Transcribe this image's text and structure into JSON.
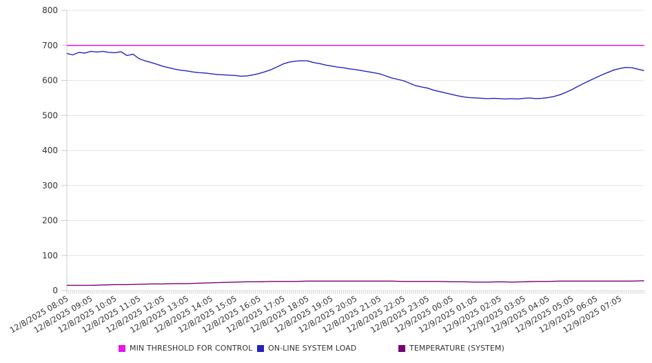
{
  "chart_data": {
    "type": "line",
    "title": "",
    "xlabel": "",
    "ylabel": "",
    "y_axis": {
      "min": 0,
      "max": 800,
      "tick_step": 100,
      "ticks": [
        "0",
        "100",
        "200",
        "300",
        "400",
        "500",
        "600",
        "700",
        "800"
      ]
    },
    "x_axis": {
      "labels": [
        "12/8/2025 08:05",
        "12/8/2025 09:05",
        "12/8/2025 10:05",
        "12/8/2025 11:05",
        "12/8/2025 12:05",
        "12/8/2025 13:05",
        "12/8/2025 14:05",
        "12/8/2025 15:05",
        "12/8/2025 16:05",
        "12/8/2025 17:05",
        "12/8/2025 18:05",
        "12/8/2025 19:05",
        "12/8/2025 20:05",
        "12/8/2025 21:05",
        "12/8/2025 22:05",
        "12/8/2025 23:05",
        "12/9/2025 00:05",
        "12/9/2025 01:05",
        "12/9/2025 02:05",
        "12/9/2025 03:05",
        "12/9/2025 04:05",
        "12/9/2025 05:05",
        "12/9/2025 06:05",
        "12/9/2025 07:05"
      ],
      "minutes_per_label": 60,
      "total_minutes": 1440,
      "minor_tick_minutes": 5
    },
    "grid": true,
    "legend_position": "bottom",
    "series": [
      {
        "name": "MIN THRESHOLD FOR CONTROL",
        "color": "#e516e5",
        "kind": "constant",
        "value": 700
      },
      {
        "name": "ON-LINE SYSTEM LOAD",
        "color": "#2323bd",
        "kind": "sampled",
        "sample_minutes": 15,
        "values": [
          677,
          673,
          680,
          678,
          683,
          681,
          683,
          680,
          679,
          682,
          671,
          675,
          662,
          656,
          651,
          646,
          640,
          636,
          632,
          629,
          627,
          624,
          622,
          621,
          619,
          617,
          616,
          615,
          614,
          612,
          613,
          616,
          620,
          625,
          631,
          639,
          647,
          652,
          655,
          656,
          656,
          651,
          648,
          644,
          641,
          638,
          636,
          633,
          631,
          628,
          625,
          622,
          619,
          613,
          607,
          603,
          599,
          592,
          585,
          581,
          578,
          572,
          568,
          564,
          560,
          556,
          553,
          551,
          550,
          549,
          548,
          549,
          548,
          547,
          548,
          547,
          549,
          550,
          548,
          549,
          551,
          554,
          559,
          566,
          574,
          583,
          592,
          600,
          608,
          616,
          623,
          630,
          634,
          637,
          636,
          632,
          628
        ]
      },
      {
        "name": "TEMPERATURE (SYSTEM)",
        "color": "#770077",
        "kind": "sampled",
        "sample_minutes": 30,
        "values": [
          15,
          15,
          15,
          16,
          17,
          17,
          18,
          19,
          19,
          20,
          20,
          21,
          22,
          23,
          24,
          25,
          25,
          26,
          26,
          26,
          27,
          27,
          27,
          27,
          27,
          27,
          27,
          27,
          26,
          26,
          26,
          26,
          25,
          25,
          24,
          24,
          25,
          24,
          25,
          26,
          26,
          27,
          27,
          27,
          27,
          27,
          27,
          27,
          28
        ]
      }
    ],
    "colors": {
      "grid": "#e3e3e3",
      "axis": "#cccccc",
      "tick": "#c9c9c9",
      "text": "#333333",
      "background": "#ffffff"
    }
  },
  "legend": {
    "entries": [
      {
        "label": "MIN THRESHOLD FOR CONTROL"
      },
      {
        "label": "ON-LINE SYSTEM LOAD"
      },
      {
        "label": "TEMPERATURE (SYSTEM)"
      }
    ]
  }
}
